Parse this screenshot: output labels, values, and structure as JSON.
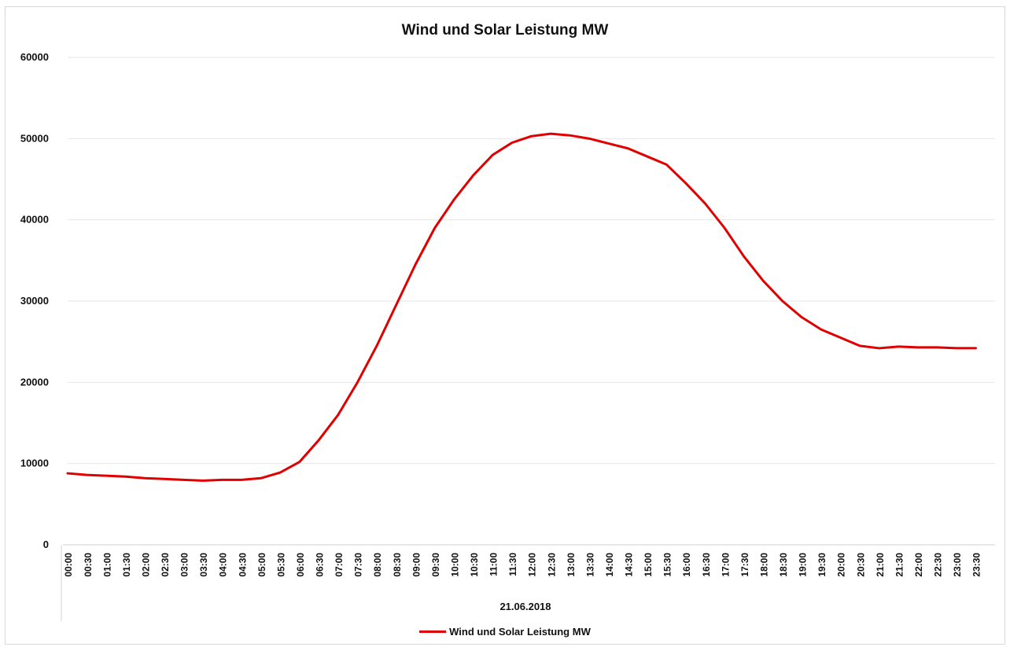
{
  "chart_data": {
    "type": "line",
    "title": "Wind und Solar Leistung MW",
    "date_label": "21.06.2018",
    "ylim": [
      0,
      60000
    ],
    "yticks": [
      "0",
      "10000",
      "20000",
      "30000",
      "40000",
      "50000",
      "60000"
    ],
    "grid": true,
    "legend_position": "bottom",
    "x": [
      "00:00",
      "00:30",
      "01:00",
      "01:30",
      "02:00",
      "02:30",
      "03:00",
      "03:30",
      "04:00",
      "04:30",
      "05:00",
      "05:30",
      "06:00",
      "06:30",
      "07:00",
      "07:30",
      "08:00",
      "08:30",
      "09:00",
      "09:30",
      "10:00",
      "10:30",
      "11:00",
      "11:30",
      "12:00",
      "12:30",
      "13:00",
      "13:30",
      "14:00",
      "14:30",
      "15:00",
      "15:30",
      "16:00",
      "16:30",
      "17:00",
      "17:30",
      "18:00",
      "18:30",
      "19:00",
      "19:30",
      "20:00",
      "20:30",
      "21:00",
      "21:30",
      "22:00",
      "22:30",
      "23:00",
      "23:30"
    ],
    "series": [
      {
        "name": "Wind und Solar Leistung MW",
        "color": "#e00000",
        "values": [
          8800,
          8600,
          8500,
          8400,
          8200,
          8100,
          8000,
          7900,
          8000,
          8000,
          8200,
          8900,
          10200,
          12900,
          16000,
          20000,
          24500,
          29500,
          34500,
          39000,
          42500,
          45500,
          48000,
          49500,
          50300,
          50600,
          50400,
          50000,
          49400,
          48800,
          47800,
          46800,
          44500,
          42000,
          39000,
          35500,
          32500,
          30000,
          28000,
          26500,
          25500,
          24500,
          24200,
          24400,
          24300,
          24300,
          24200,
          24200
        ]
      }
    ]
  }
}
